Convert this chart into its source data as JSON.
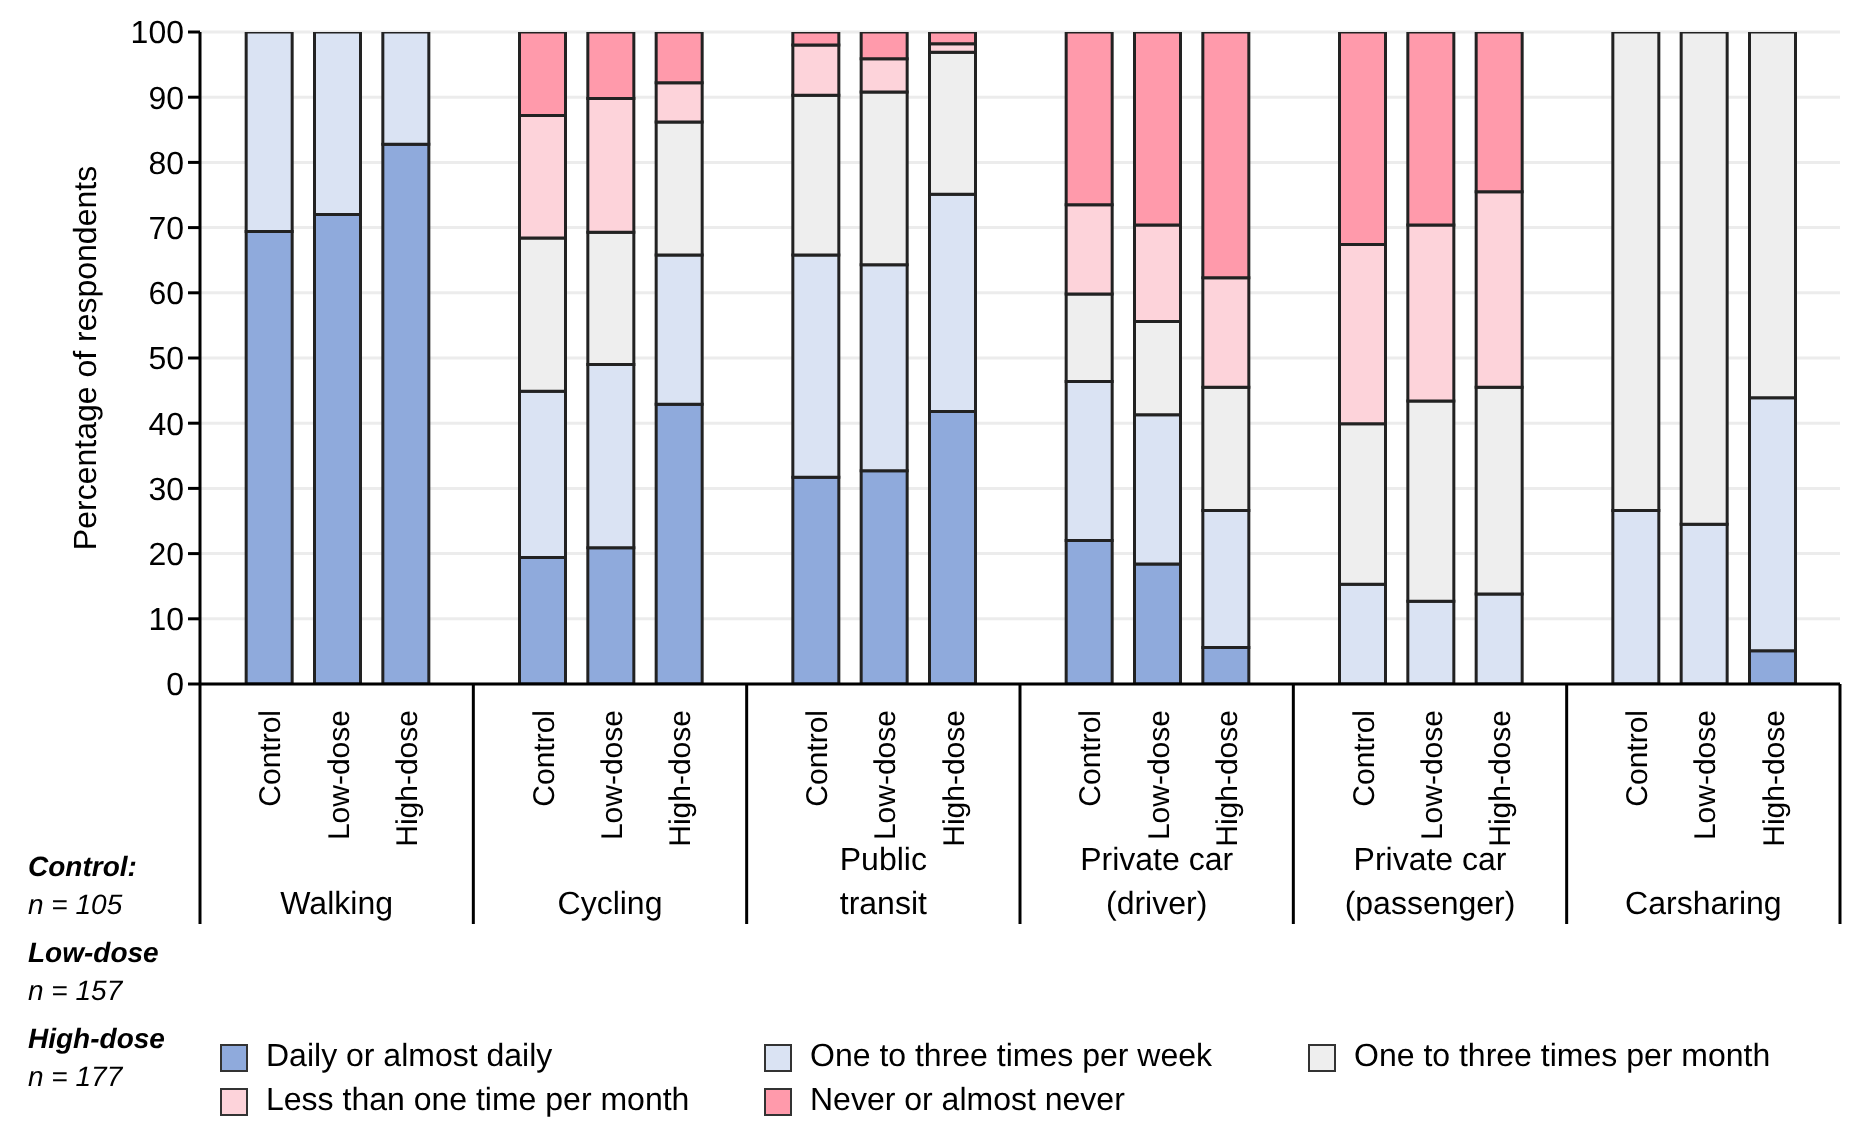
{
  "chart_data": {
    "type": "bar",
    "stacked": true,
    "ylabel": "Percentage of respondents",
    "categories": [
      "Control",
      "Low-dose",
      "High-dose",
      "Control",
      "Low-dose",
      "High-dose",
      "Control",
      "Low-dose",
      "High-dose",
      "Control",
      "Low-dose",
      "High-dose",
      "Control",
      "Low-dose",
      "High-dose",
      "Control",
      "Low-dose",
      "High-dose"
    ],
    "series": [
      {
        "name": "Daily or almost daily",
        "color": "#8faadc",
        "values": [
          69.4,
          72.0,
          82.8,
          19.4,
          20.9,
          42.9,
          31.7,
          32.7,
          41.8,
          22.0,
          18.4,
          5.6,
          0,
          0,
          0,
          0,
          0,
          5.1
        ]
      },
      {
        "name": "One to three times per week",
        "color": "#dae3f3",
        "values": [
          30.6,
          28.0,
          17.2,
          25.5,
          28.1,
          22.9,
          34.1,
          31.6,
          33.3,
          24.4,
          22.9,
          21.0,
          15.3,
          12.7,
          13.8,
          26.6,
          24.5,
          38.8
        ]
      },
      {
        "name": "One to three times per month",
        "color": "#eeeeee",
        "values": [
          0,
          0,
          0,
          23.5,
          20.3,
          20.4,
          24.5,
          26.5,
          21.8,
          13.4,
          14.3,
          18.9,
          24.6,
          30.7,
          31.7,
          73.4,
          75.5,
          56.1
        ]
      },
      {
        "name": "Less than one time per month",
        "color": "#fdd3da",
        "values": [
          0,
          0,
          0,
          18.8,
          20.5,
          6.0,
          7.7,
          5.1,
          1.3,
          13.7,
          14.8,
          16.8,
          27.5,
          27.0,
          30.0,
          0,
          0,
          0
        ]
      },
      {
        "name": "Never or almost never",
        "color": "#ff9aab",
        "values": [
          0,
          0,
          0,
          12.8,
          10.2,
          7.8,
          2.0,
          4.1,
          1.8,
          26.5,
          29.6,
          37.7,
          32.6,
          29.6,
          24.5,
          0,
          0,
          0
        ]
      }
    ],
    "ylim": [
      0,
      100
    ],
    "yticks": [
      0,
      10,
      20,
      30,
      40,
      50,
      60,
      70,
      80,
      90,
      100
    ],
    "grid": "y",
    "legend": "bottom",
    "annotations": [
      "Walking",
      "Cycling",
      "Public\ntransit",
      "Private car\n(driver)",
      "Private car\n(passenger)",
      "Carsharing",
      "Control:\nn = 105",
      "Low-dose\nn = 157",
      "High-dose\nn = 177"
    ]
  }
}
